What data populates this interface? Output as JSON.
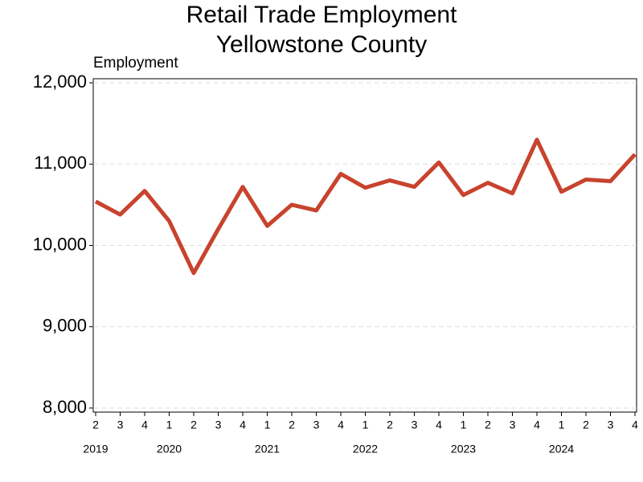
{
  "chart_data": {
    "type": "line",
    "title": "Retail Trade Employment",
    "subtitle": "Yellowstone County",
    "y_label": "Employment",
    "categories": [
      "2",
      "3",
      "4",
      "1",
      "2",
      "3",
      "4",
      "1",
      "2",
      "3",
      "4",
      "1",
      "2",
      "3",
      "4",
      "1",
      "2",
      "3",
      "4",
      "1",
      "2",
      "3",
      "4"
    ],
    "years": [
      "2019",
      null,
      null,
      "2020",
      null,
      null,
      null,
      "2021",
      null,
      null,
      null,
      "2022",
      null,
      null,
      null,
      "2023",
      null,
      null,
      null,
      "2024",
      null,
      null,
      null
    ],
    "series": [
      {
        "name": "Employment",
        "color": "#c8432e",
        "values": [
          10540,
          10380,
          10670,
          10300,
          9660,
          10200,
          10720,
          10240,
          10500,
          10430,
          10880,
          10710,
          10800,
          10720,
          11020,
          10620,
          10770,
          10640,
          11300,
          10660,
          10810,
          10790,
          11120
        ]
      }
    ],
    "ylim": [
      7950,
      12050
    ],
    "yticks": [
      {
        "value": 8000,
        "label": "8,000"
      },
      {
        "value": 9000,
        "label": "9,000"
      },
      {
        "value": 10000,
        "label": "10,000"
      },
      {
        "value": 11000,
        "label": "11,000"
      },
      {
        "value": 12000,
        "label": "12,000"
      }
    ],
    "grid": true
  }
}
